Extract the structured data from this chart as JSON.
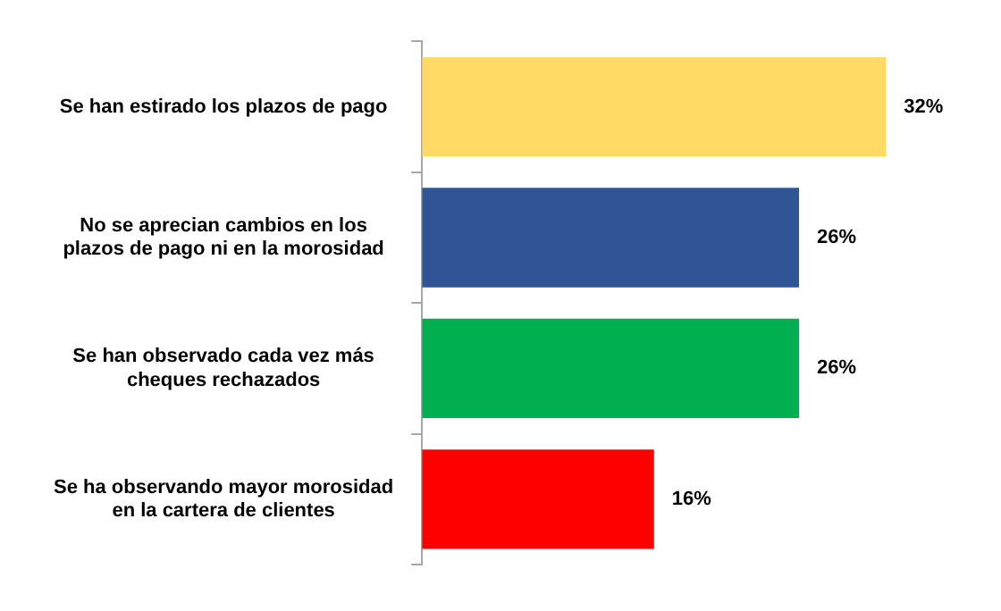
{
  "chart_data": {
    "type": "bar",
    "orientation": "horizontal",
    "categories": [
      "Se han estirado los plazos de pago",
      "No se aprecian cambios en los plazos de pago ni en la morosidad",
      "Se han observado cada vez más cheques rechazados",
      "Se ha observando mayor morosidad en la cartera de clientes"
    ],
    "values": [
      32,
      26,
      26,
      16
    ],
    "colors": [
      "#ffd966",
      "#2f5597",
      "#00b050",
      "#ff0000"
    ],
    "value_labels": [
      "32%",
      "26%",
      "26%",
      "16%"
    ],
    "grid": false,
    "legend": false
  }
}
